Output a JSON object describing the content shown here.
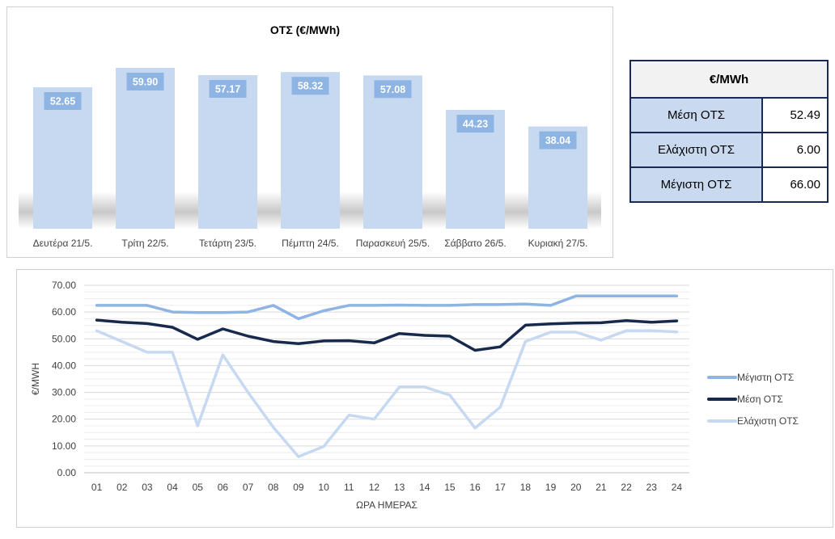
{
  "chart_data": [
    {
      "type": "bar",
      "title": "ΟΤΣ (€/MWh)",
      "categories": [
        "Δευτέρα 21/5.",
        "Τρίτη 22/5.",
        "Τετάρτη 23/5.",
        "Πέμπτη 24/5.",
        "Παρασκευή 25/5.",
        "Σάββατο 26/5.",
        "Κυριακή 27/5."
      ],
      "values": [
        52.65,
        59.9,
        57.17,
        58.32,
        57.08,
        44.23,
        38.04
      ],
      "value_labels": [
        "52.65",
        "59.90",
        "57.17",
        "58.32",
        "57.08",
        "44.23",
        "38.04"
      ],
      "ylim": [
        0,
        68
      ],
      "colors": {
        "bar": "#c6d9f1",
        "label_bg": "#8db4e2",
        "label_text": "#ffffff"
      }
    },
    {
      "type": "line",
      "xlabel": "ΩΡΑ ΗΜΕΡΑΣ",
      "ylabel": "€/MWH",
      "x": [
        "01",
        "02",
        "03",
        "04",
        "05",
        "06",
        "07",
        "08",
        "09",
        "10",
        "11",
        "12",
        "13",
        "14",
        "15",
        "16",
        "17",
        "18",
        "19",
        "20",
        "21",
        "22",
        "23",
        "24"
      ],
      "ylim": [
        0,
        70
      ],
      "yticks": [
        0,
        10,
        20,
        30,
        40,
        50,
        60,
        70
      ],
      "ytick_labels": [
        "0.00",
        "10.00",
        "20.00",
        "30.00",
        "40.00",
        "50.00",
        "60.00",
        "70.00"
      ],
      "grid": true,
      "legend_position": "right",
      "series": [
        {
          "name": "Μέγιστη ΟΤΣ",
          "color": "#8eb4e3",
          "values": [
            62.5,
            62.5,
            62.5,
            60.0,
            59.8,
            59.8,
            60.0,
            62.5,
            57.5,
            60.5,
            62.5,
            62.5,
            62.6,
            62.5,
            62.5,
            62.8,
            62.8,
            63.0,
            62.5,
            66.0,
            66.0,
            66.0,
            66.0,
            66.0
          ]
        },
        {
          "name": "Μέση ΟΤΣ",
          "color": "#17294d",
          "values": [
            57.0,
            56.2,
            55.7,
            54.3,
            49.8,
            53.7,
            51.0,
            49.0,
            48.2,
            49.2,
            49.3,
            48.5,
            52.0,
            51.3,
            51.0,
            45.7,
            47.0,
            55.1,
            55.6,
            55.9,
            56.0,
            56.8,
            56.2,
            56.7
          ]
        },
        {
          "name": "Ελάχιστη ΟΤΣ",
          "color": "#c6d9f1",
          "values": [
            53.0,
            49.0,
            45.0,
            45.0,
            17.5,
            44.0,
            30.0,
            17.0,
            6.0,
            9.8,
            21.5,
            20.0,
            32.0,
            32.0,
            29.0,
            16.7,
            24.5,
            49.0,
            52.5,
            52.5,
            49.5,
            53.0,
            53.0,
            52.6
          ]
        }
      ]
    }
  ],
  "stats_table": {
    "header": "€/MWh",
    "rows": [
      {
        "label": "Μέση ΟΤΣ",
        "value": "52.49"
      },
      {
        "label": "Ελάχιστη ΟΤΣ",
        "value": "6.00"
      },
      {
        "label": "Μέγιστη ΟΤΣ",
        "value": "66.00"
      }
    ]
  }
}
